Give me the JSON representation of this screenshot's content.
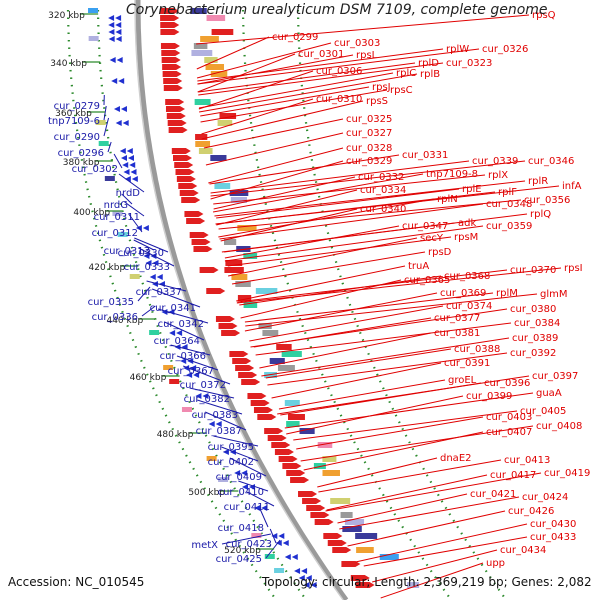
{
  "title": "Corynebacterium urealyticum DSM 7109, complete genome",
  "accession": "Accession: NC_010545",
  "topology": "Topology: circular; Length: 2,369,219 bp; Genes: 2,082",
  "colors": {
    "left_label": "#1a1aa8",
    "right_label": "#e00000",
    "backbone": "#9a9a9a",
    "tick": "#2c8a2c"
  },
  "scale_labels": [
    "320 kbp",
    "340 kbp",
    "360 kbp",
    "380 kbp",
    "400 kbp",
    "420 kbp",
    "440 kbp",
    "460 kbp",
    "480 kbp",
    "500 kbp",
    "520 kbp"
  ],
  "left_genes": [
    "cur_0279",
    "tnp7109-6",
    "cur_0290",
    "cur_0296",
    "cur_0302",
    "nrdD",
    "nrdG",
    "cur_0311",
    "cur_0312",
    "cur_0313",
    "cur_0330",
    "cur_0333",
    "cur_0337",
    "cur_0335",
    "cur_0341",
    "cur_0336",
    "cur_0342",
    "cur_0364",
    "cur_0366",
    "cur_0367",
    "cur_0372",
    "cur_0382",
    "cur_0383",
    "cur_0387",
    "cur_0395",
    "cur_0402",
    "cur_0409",
    "cur_0410",
    "cur_0411",
    "cur_0418",
    "metX",
    "cur_0423",
    "cur_0425"
  ],
  "right_genes": [
    "rpsQ",
    "cur_0299",
    "cur_0303",
    "cur_0301",
    "rpsL",
    "rplW",
    "cur_0326",
    "cur_0306",
    "rplD",
    "cur_0323",
    "rplC",
    "rplB",
    "rpsJ",
    "rpsC",
    "cur_0310",
    "rpsS",
    "cur_0325",
    "cur_0327",
    "cur_0328",
    "cur_0329",
    "cur_0331",
    "cur_0339",
    "cur_0346",
    "tnp7109-8",
    "rplX",
    "cur_0332",
    "rplR",
    "infA",
    "rplE",
    "rplF",
    "cur_0334",
    "rplN",
    "cur_0356",
    "cur_0340",
    "cur_0348",
    "rplQ",
    "adk",
    "cur_0347",
    "cur_0359",
    "secY",
    "rpsM",
    "rpsD",
    "truA",
    "cur_0365",
    "cur_0368",
    "cur_0370",
    "rpsI",
    "cur_0369",
    "rplM",
    "glmM",
    "cur_0374",
    "cur_0380",
    "cur_0377",
    "cur_0384",
    "cur_0381",
    "cur_0389",
    "cur_0388",
    "cur_0392",
    "cur_0391",
    "cur_0397",
    "groEL",
    "cur_0396",
    "guaA",
    "cur_0399",
    "cur_0405",
    "cur_0403",
    "cur_0408",
    "cur_0407",
    "dnaE2",
    "cur_0413",
    "cur_0417",
    "cur_0419",
    "cur_0421",
    "cur_0424",
    "cur_0426",
    "cur_0430",
    "cur_0433",
    "cur_0434",
    "upp"
  ]
}
